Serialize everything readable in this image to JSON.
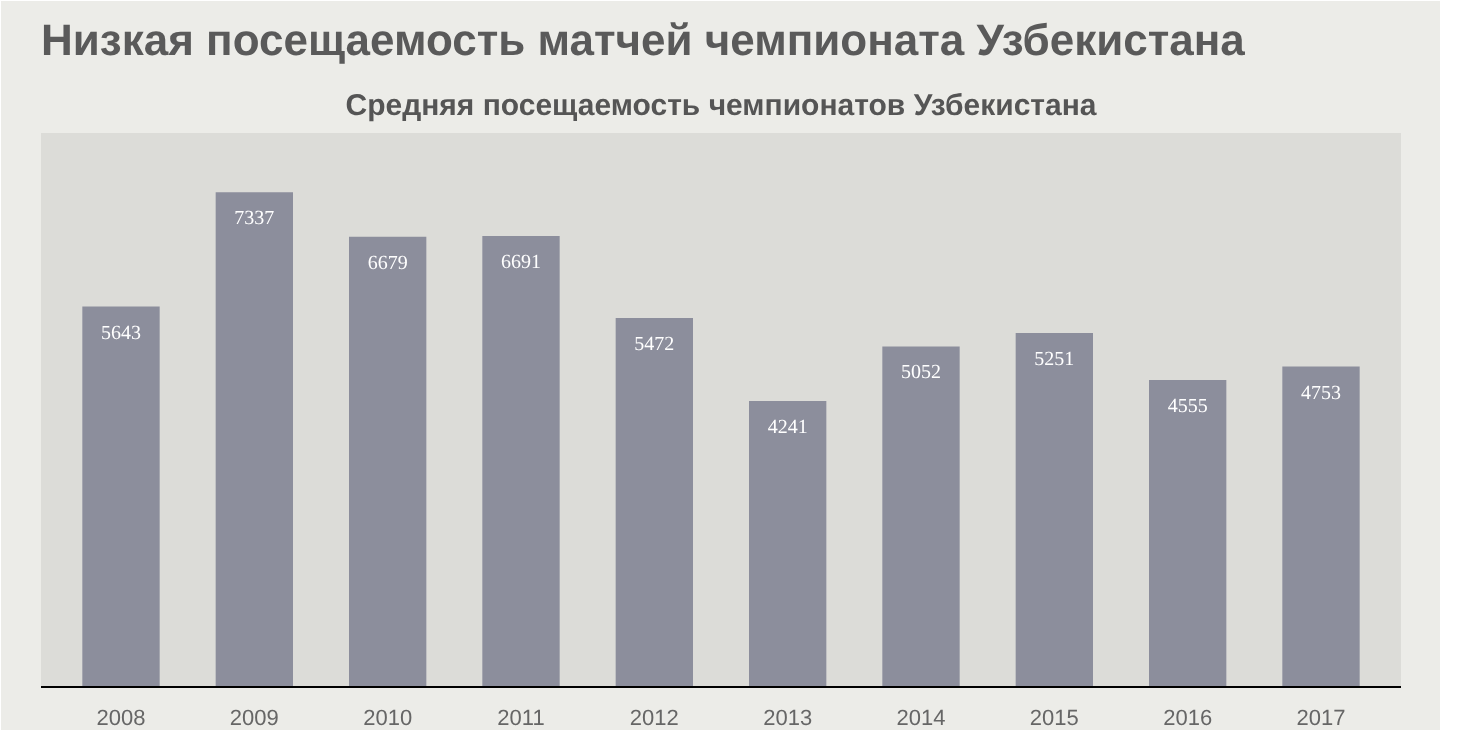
{
  "chart_data": {
    "type": "bar",
    "title": "Низкая посещаемость матчей чемпионата Узбекистана",
    "subtitle": "Средняя посещаемость чемпионатов Узбекистана",
    "categories": [
      "2008",
      "2009",
      "2010",
      "2011",
      "2012",
      "2013",
      "2014",
      "2015",
      "2016",
      "2017"
    ],
    "values": [
      5643,
      7337,
      6679,
      6691,
      5472,
      4241,
      5052,
      5251,
      4555,
      4753
    ],
    "color": "#8c8e9c",
    "data_labels": true
  }
}
